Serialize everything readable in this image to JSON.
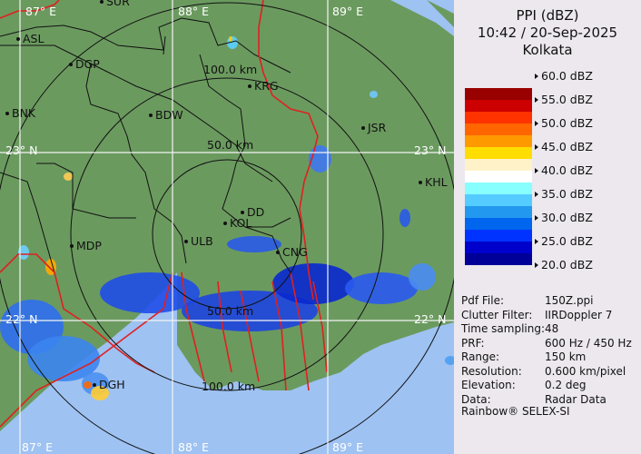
{
  "header": {
    "line1": "PPI (dBZ)",
    "line2": "10:42 / 20-Sep-2025",
    "line3": "Kolkata"
  },
  "legend": {
    "ticks": [
      "60.0 dBZ",
      "55.0 dBZ",
      "50.0 dBZ",
      "45.0 dBZ",
      "40.0 dBZ",
      "35.0 dBZ",
      "30.0 dBZ",
      "25.0 dBZ",
      "20.0 dBZ"
    ],
    "colors": [
      "#990000",
      "#cc0000",
      "#ff3300",
      "#ff6600",
      "#ff9900",
      "#ffdd00",
      "#fff2c8",
      "#ffffff",
      "#88ffff",
      "#55ccff",
      "#2299ee",
      "#0066ee",
      "#0033ff",
      "#0000cc",
      "#000099"
    ]
  },
  "info": [
    {
      "label": "Pdf File:",
      "value": "150Z.ppi"
    },
    {
      "label": "Clutter Filter:",
      "value": "IIRDoppler 7"
    },
    {
      "label": "Time sampling:",
      "value": "48"
    },
    {
      "label": "PRF:",
      "value": "600 Hz / 450 Hz"
    },
    {
      "label": "Range:",
      "value": "150 km"
    },
    {
      "label": "Resolution:",
      "value": "0.600 km/pixel"
    },
    {
      "label": "Elevation:",
      "value": "0.2 deg"
    },
    {
      "label": "Data:",
      "value": "Radar Data"
    }
  ],
  "credit": "Rainbow® SELEX-SI",
  "map": {
    "land_color": "#6b9a5f",
    "sea_color": "#9ec2f2",
    "border_color": "#e02020",
    "grid": {
      "lon": [
        "87° E",
        "88° E",
        "89° E"
      ],
      "lat": [
        "23° N",
        "22° N"
      ]
    },
    "range_rings": [
      "100.0 km",
      "50.0 km",
      "50.0 km",
      "100.0 km"
    ],
    "stations": [
      "SUR",
      "ASL",
      "DGP",
      "BNK",
      "BDW",
      "KRG",
      "JSR",
      "KHL",
      "DD",
      "KOL",
      "ULB",
      "MDP",
      "CNG",
      "DGH"
    ]
  }
}
